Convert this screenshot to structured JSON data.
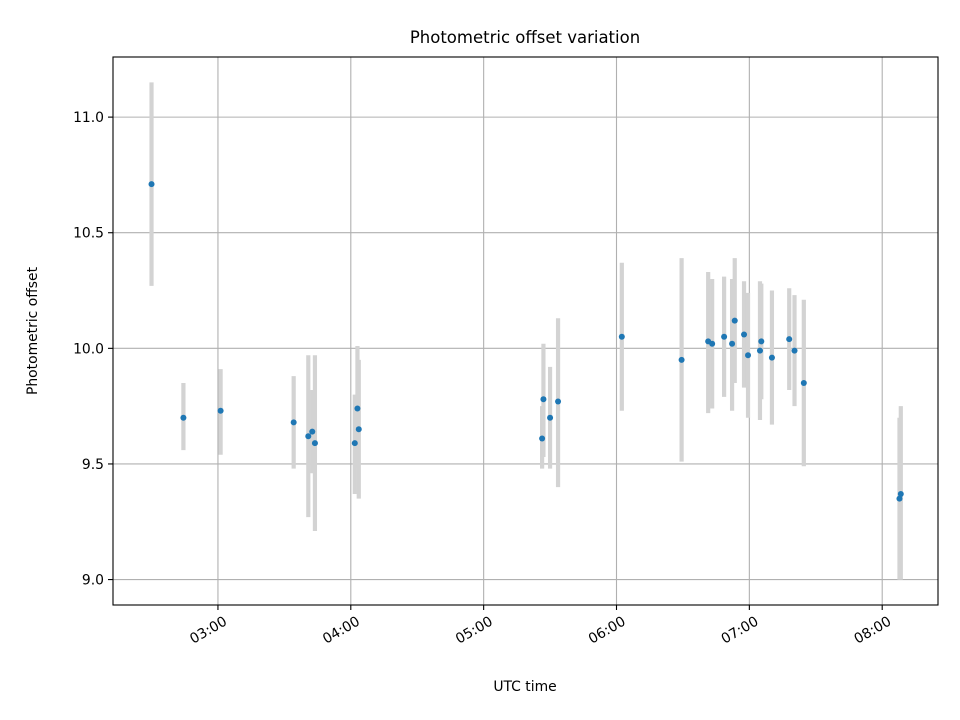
{
  "chart_data": {
    "type": "scatter",
    "title": "Photometric offset variation",
    "xlabel": "UTC time",
    "ylabel": "Photometric offset",
    "x_unit": "hours UTC",
    "xlim": [
      2.21,
      8.42
    ],
    "ylim": [
      8.89,
      11.26
    ],
    "x_ticks": [
      {
        "value": 3,
        "label": "03:00"
      },
      {
        "value": 4,
        "label": "04:00"
      },
      {
        "value": 5,
        "label": "05:00"
      },
      {
        "value": 6,
        "label": "06:00"
      },
      {
        "value": 7,
        "label": "07:00"
      },
      {
        "value": 8,
        "label": "08:00"
      }
    ],
    "y_ticks": [
      {
        "value": 9.0,
        "label": "9.0"
      },
      {
        "value": 9.5,
        "label": "9.5"
      },
      {
        "value": 10.0,
        "label": "10.0"
      },
      {
        "value": 10.5,
        "label": "10.5"
      },
      {
        "value": 11.0,
        "label": "11.0"
      }
    ],
    "grid": true,
    "marker_color": "#1f77b4",
    "errorbar_color": "#d3d3d3",
    "points": [
      {
        "x": 2.5,
        "y": 10.71,
        "lo": 10.27,
        "hi": 11.15
      },
      {
        "x": 2.74,
        "y": 9.7,
        "lo": 9.56,
        "hi": 9.85
      },
      {
        "x": 3.02,
        "y": 9.73,
        "lo": 9.54,
        "hi": 9.91
      },
      {
        "x": 3.57,
        "y": 9.68,
        "lo": 9.48,
        "hi": 9.88
      },
      {
        "x": 3.68,
        "y": 9.62,
        "lo": 9.27,
        "hi": 9.97
      },
      {
        "x": 3.71,
        "y": 9.64,
        "lo": 9.46,
        "hi": 9.82
      },
      {
        "x": 3.73,
        "y": 9.59,
        "lo": 9.21,
        "hi": 9.97
      },
      {
        "x": 4.03,
        "y": 9.59,
        "lo": 9.37,
        "hi": 9.8
      },
      {
        "x": 4.05,
        "y": 9.74,
        "lo": 9.48,
        "hi": 10.01
      },
      {
        "x": 4.06,
        "y": 9.65,
        "lo": 9.35,
        "hi": 9.95
      },
      {
        "x": 5.44,
        "y": 9.61,
        "lo": 9.48,
        "hi": 9.75
      },
      {
        "x": 5.45,
        "y": 9.78,
        "lo": 9.53,
        "hi": 10.02
      },
      {
        "x": 5.5,
        "y": 9.7,
        "lo": 9.48,
        "hi": 9.92
      },
      {
        "x": 5.56,
        "y": 9.77,
        "lo": 9.4,
        "hi": 10.13
      },
      {
        "x": 6.04,
        "y": 10.05,
        "lo": 9.73,
        "hi": 10.37
      },
      {
        "x": 6.49,
        "y": 9.95,
        "lo": 9.51,
        "hi": 10.39
      },
      {
        "x": 6.69,
        "y": 10.03,
        "lo": 9.72,
        "hi": 10.33
      },
      {
        "x": 6.72,
        "y": 10.02,
        "lo": 9.74,
        "hi": 10.3
      },
      {
        "x": 6.81,
        "y": 10.05,
        "lo": 9.79,
        "hi": 10.31
      },
      {
        "x": 6.87,
        "y": 10.02,
        "lo": 9.73,
        "hi": 10.3
      },
      {
        "x": 6.89,
        "y": 10.12,
        "lo": 9.85,
        "hi": 10.39
      },
      {
        "x": 6.96,
        "y": 10.06,
        "lo": 9.83,
        "hi": 10.29
      },
      {
        "x": 6.99,
        "y": 9.97,
        "lo": 9.7,
        "hi": 10.24
      },
      {
        "x": 7.08,
        "y": 9.99,
        "lo": 9.69,
        "hi": 10.29
      },
      {
        "x": 7.09,
        "y": 10.03,
        "lo": 9.78,
        "hi": 10.28
      },
      {
        "x": 7.17,
        "y": 9.96,
        "lo": 9.67,
        "hi": 10.25
      },
      {
        "x": 7.3,
        "y": 10.04,
        "lo": 9.82,
        "hi": 10.26
      },
      {
        "x": 7.34,
        "y": 9.99,
        "lo": 9.75,
        "hi": 10.23
      },
      {
        "x": 7.41,
        "y": 9.85,
        "lo": 9.49,
        "hi": 10.21
      },
      {
        "x": 8.13,
        "y": 9.35,
        "lo": 9.0,
        "hi": 9.7
      },
      {
        "x": 8.14,
        "y": 9.37,
        "lo": 9.0,
        "hi": 9.75
      }
    ]
  }
}
